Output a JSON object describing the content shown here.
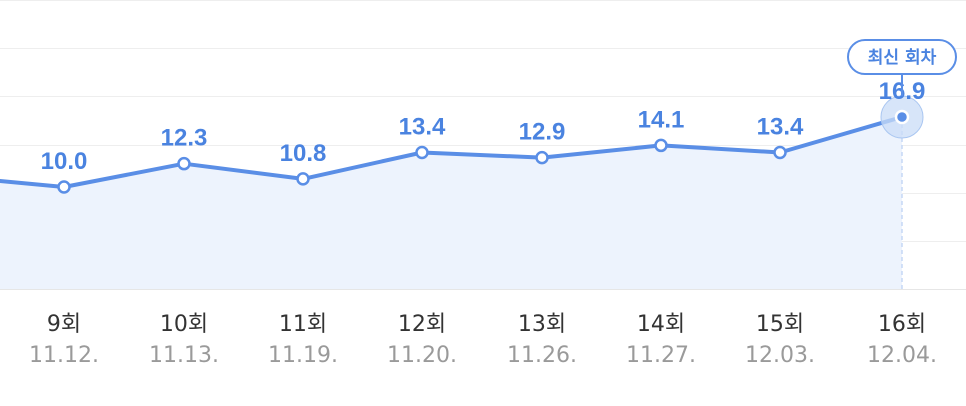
{
  "chart_data": {
    "type": "area",
    "episodes": [
      "9회",
      "10회",
      "11회",
      "12회",
      "13회",
      "14회",
      "15회",
      "16회"
    ],
    "dates": [
      "11.12.",
      "11.13.",
      "11.19.",
      "11.20.",
      "11.26.",
      "11.27.",
      "12.03.",
      "12.04."
    ],
    "values": [
      10.0,
      12.3,
      10.8,
      13.4,
      12.9,
      14.1,
      13.4,
      16.9
    ],
    "value_labels": [
      "10.0",
      "12.3",
      "10.8",
      "13.4",
      "12.9",
      "14.1",
      "13.4",
      "16.9"
    ],
    "latest_badge": "최신 회차",
    "grid": true,
    "colors": {
      "line": "#5a8ee6",
      "area": "#edf3fd",
      "label": "#4a83e0",
      "grid": "#eeeeee",
      "highlight": "#c9dcf7"
    }
  }
}
